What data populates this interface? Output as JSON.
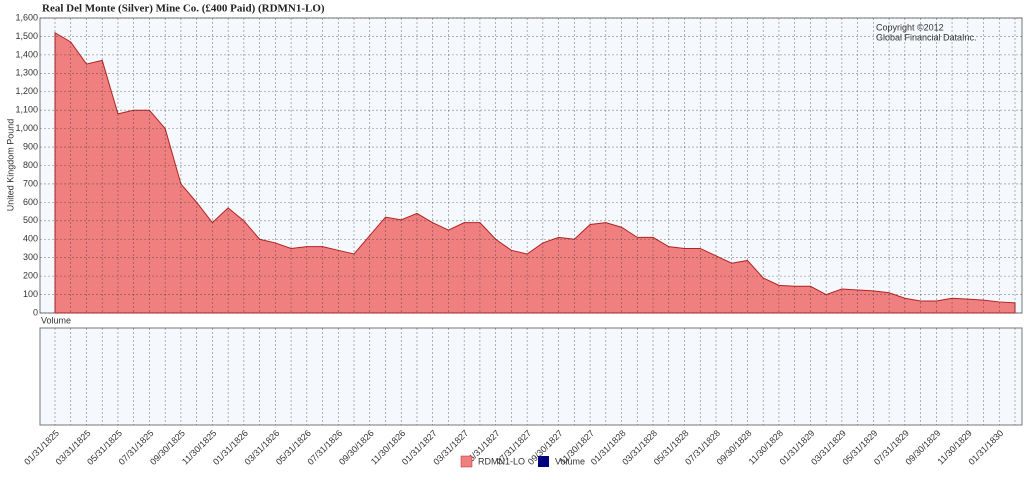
{
  "chart_data": {
    "type": "area",
    "title": "Real Del Monte (Silver) Mine Co. (£400 Paid) (RDMN1-LO)",
    "y_label": "United Kingdom Pound",
    "annotations": [
      "Copyright ©2012",
      "Global Financial DataInc."
    ],
    "categories": [
      "01/31/1825",
      null,
      "03/31/1825",
      null,
      "05/31/1825",
      null,
      "07/31/1825",
      null,
      "09/30/1825",
      null,
      "11/30/1825",
      null,
      "01/31/1826",
      null,
      "03/31/1826",
      null,
      "05/31/1826",
      null,
      "07/31/1826",
      null,
      "09/30/1826",
      null,
      "11/30/1826",
      null,
      "01/31/1827",
      null,
      "03/31/1827",
      null,
      "05/31/1827",
      null,
      "07/31/1827",
      null,
      "09/30/1827",
      null,
      "11/30/1827",
      null,
      "01/31/1828",
      null,
      "03/31/1828",
      null,
      "05/31/1828",
      null,
      "07/31/1828",
      null,
      "09/30/1828",
      null,
      "11/30/1828",
      null,
      "01/31/1829",
      null,
      "03/31/1829",
      null,
      "05/31/1829",
      null,
      "07/31/1829",
      null,
      "09/30/1829",
      null,
      "11/30/1829",
      null,
      "01/31/1830",
      null
    ],
    "series": [
      {
        "name": "RDMN1-LO",
        "color": "#f08080",
        "line_color": "#b22222",
        "values": [
          1520,
          1470,
          1350,
          1370,
          1080,
          1100,
          1100,
          1000,
          700,
          600,
          490,
          570,
          500,
          400,
          380,
          350,
          360,
          360,
          340,
          320,
          420,
          520,
          505,
          540,
          490,
          450,
          490,
          490,
          400,
          340,
          320,
          380,
          410,
          400,
          480,
          490,
          465,
          410,
          410,
          360,
          350,
          350,
          310,
          270,
          285,
          190,
          150,
          145,
          145,
          100,
          130,
          125,
          120,
          110,
          80,
          65,
          65,
          80,
          75,
          70,
          60,
          55
        ]
      }
    ],
    "volume": {
      "label": "Volume",
      "color": "#000080"
    },
    "ylim": [
      0,
      1600
    ],
    "yticks": [
      0,
      100,
      200,
      300,
      400,
      500,
      600,
      700,
      800,
      900,
      {
        "value": 1000,
        "label": "1,000"
      },
      {
        "value": 1100,
        "label": "1,100"
      },
      {
        "value": 1200,
        "label": "1,200"
      },
      {
        "value": 1300,
        "label": "1,300"
      },
      {
        "value": 1400,
        "label": "1,400"
      },
      {
        "value": 1500,
        "label": "1,500"
      },
      {
        "value": 1600,
        "label": "1,600"
      }
    ],
    "grid": true
  }
}
